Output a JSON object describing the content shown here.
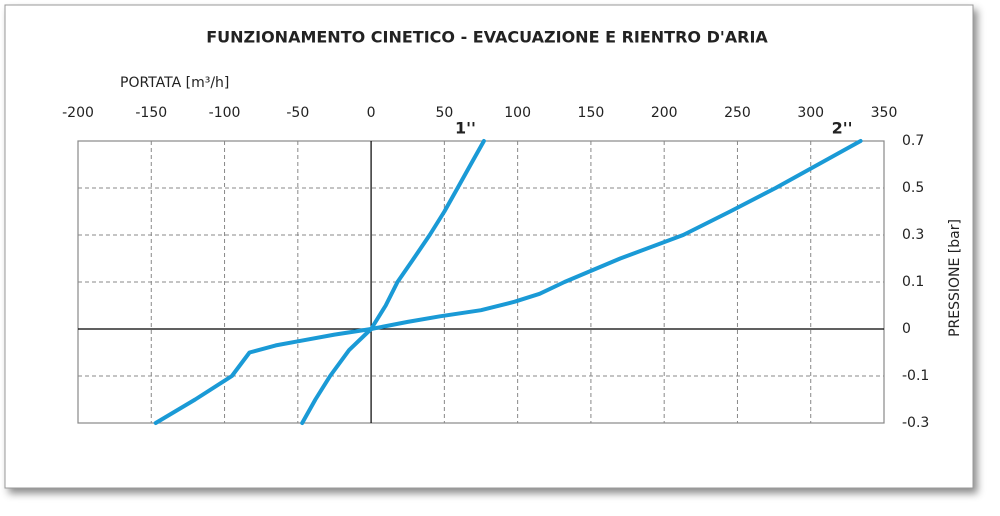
{
  "chart_data": {
    "type": "line",
    "title": "FUNZIONAMENTO CINETICO - EVACUAZIONE E RIENTRO D'ARIA",
    "x_label": "PORTATA [m³/h]",
    "y_label": "PRESSIONE [bar]",
    "xlim": [
      -200,
      350
    ],
    "xticks": [
      -200,
      -150,
      -100,
      -50,
      0,
      50,
      100,
      150,
      200,
      250,
      300,
      350
    ],
    "ylim": [
      -0.3,
      0.7
    ],
    "yticks": [
      -0.3,
      -0.1,
      0,
      0.1,
      0.3,
      0.5,
      0.7
    ],
    "grid": true,
    "series": [
      {
        "name": "1''",
        "color": "#1a9ad6",
        "x": [
          -47,
          -38,
          -28,
          -15,
          0,
          10,
          18,
          28,
          40,
          50,
          59,
          68,
          77
        ],
        "values": [
          -0.3,
          -0.2,
          -0.1,
          -0.045,
          0,
          0.05,
          0.1,
          0.19,
          0.3,
          0.4,
          0.5,
          0.6,
          0.7
        ]
      },
      {
        "name": "2''",
        "color": "#1a9ad6",
        "x": [
          -147,
          -120,
          -95,
          -83,
          -65,
          -48,
          -25,
          0,
          25,
          47,
          75,
          98,
          115,
          132,
          170,
          213,
          245,
          276,
          305,
          334
        ],
        "values": [
          -0.3,
          -0.2,
          -0.1,
          -0.05,
          -0.035,
          -0.025,
          -0.012,
          0,
          0.015,
          0.027,
          0.04,
          0.058,
          0.075,
          0.1,
          0.2,
          0.3,
          0.4,
          0.5,
          0.6,
          0.7
        ]
      }
    ]
  }
}
